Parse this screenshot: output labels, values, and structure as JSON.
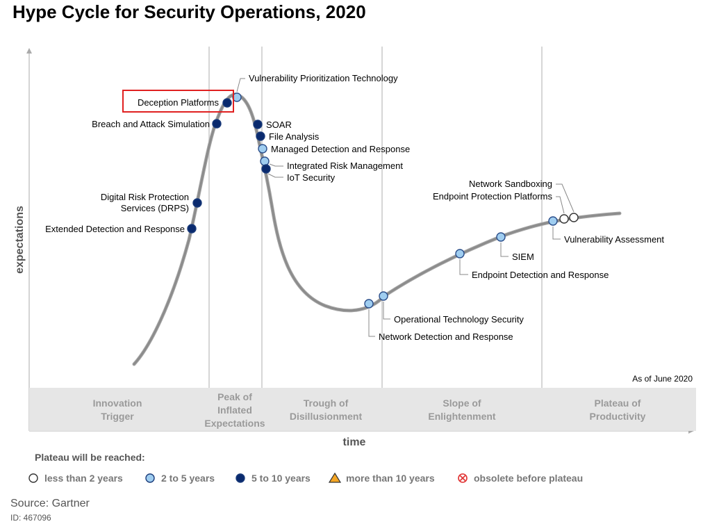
{
  "page": {
    "title": "Hype Cycle for Security Operations, 2020",
    "source": "Source: Gartner",
    "doc_id": "ID: 467096"
  },
  "chart_data": {
    "type": "hype-cycle",
    "title": "Hype Cycle for Security Operations, 2020",
    "xlabel": "time",
    "ylabel": "expectations",
    "as_of": "As of June 2020",
    "phases": [
      [
        "Innovation",
        "Trigger"
      ],
      [
        "Peak of",
        "Inflated",
        "Expectations"
      ],
      [
        "Trough of",
        "Disillusionment"
      ],
      [
        "Slope of",
        "Enlightenment"
      ],
      [
        "Plateau of",
        "Productivity"
      ]
    ],
    "legend_title": "Plateau will be reached:",
    "legend": [
      {
        "key": "lt2",
        "label": "less than 2 years",
        "marker": "circle",
        "color": "#ffffff"
      },
      {
        "key": "2to5",
        "label": "2 to 5 years",
        "marker": "circle",
        "color": "#9fcdf0"
      },
      {
        "key": "5to10",
        "label": "5 to 10 years",
        "marker": "circle",
        "color": "#0a2a6e"
      },
      {
        "key": "gt10",
        "label": "more than 10 years",
        "marker": "triangle",
        "color": "#f5a623"
      },
      {
        "key": "obs",
        "label": "obsolete before plateau",
        "marker": "crossed-circle",
        "color": "#e03030"
      }
    ],
    "highlighted": "Deception Platforms",
    "technologies": [
      {
        "name": "Extended Detection and Response",
        "category": "5to10"
      },
      {
        "name": "Digital Risk Protection Services (DRPS)",
        "lines": [
          "Digital Risk Protection",
          "Services (DRPS)"
        ],
        "category": "5to10"
      },
      {
        "name": "Breach and Attack Simulation",
        "category": "5to10"
      },
      {
        "name": "Deception Platforms",
        "category": "5to10"
      },
      {
        "name": "Vulnerability Prioritization Technology",
        "category": "2to5"
      },
      {
        "name": "SOAR",
        "category": "5to10"
      },
      {
        "name": "File Analysis",
        "category": "5to10"
      },
      {
        "name": "Managed Detection and Response",
        "category": "2to5"
      },
      {
        "name": "Integrated Risk Management",
        "category": "2to5"
      },
      {
        "name": "IoT Security",
        "category": "5to10"
      },
      {
        "name": "Network Detection and Response",
        "category": "2to5"
      },
      {
        "name": "Operational Technology Security",
        "category": "2to5"
      },
      {
        "name": "Endpoint Detection and Response",
        "category": "2to5"
      },
      {
        "name": "SIEM",
        "category": "2to5"
      },
      {
        "name": "Vulnerability Assessment",
        "category": "2to5"
      },
      {
        "name": "Endpoint Protection Platforms",
        "category": "lt2"
      },
      {
        "name": "Network Sandboxing",
        "category": "lt2"
      }
    ]
  }
}
